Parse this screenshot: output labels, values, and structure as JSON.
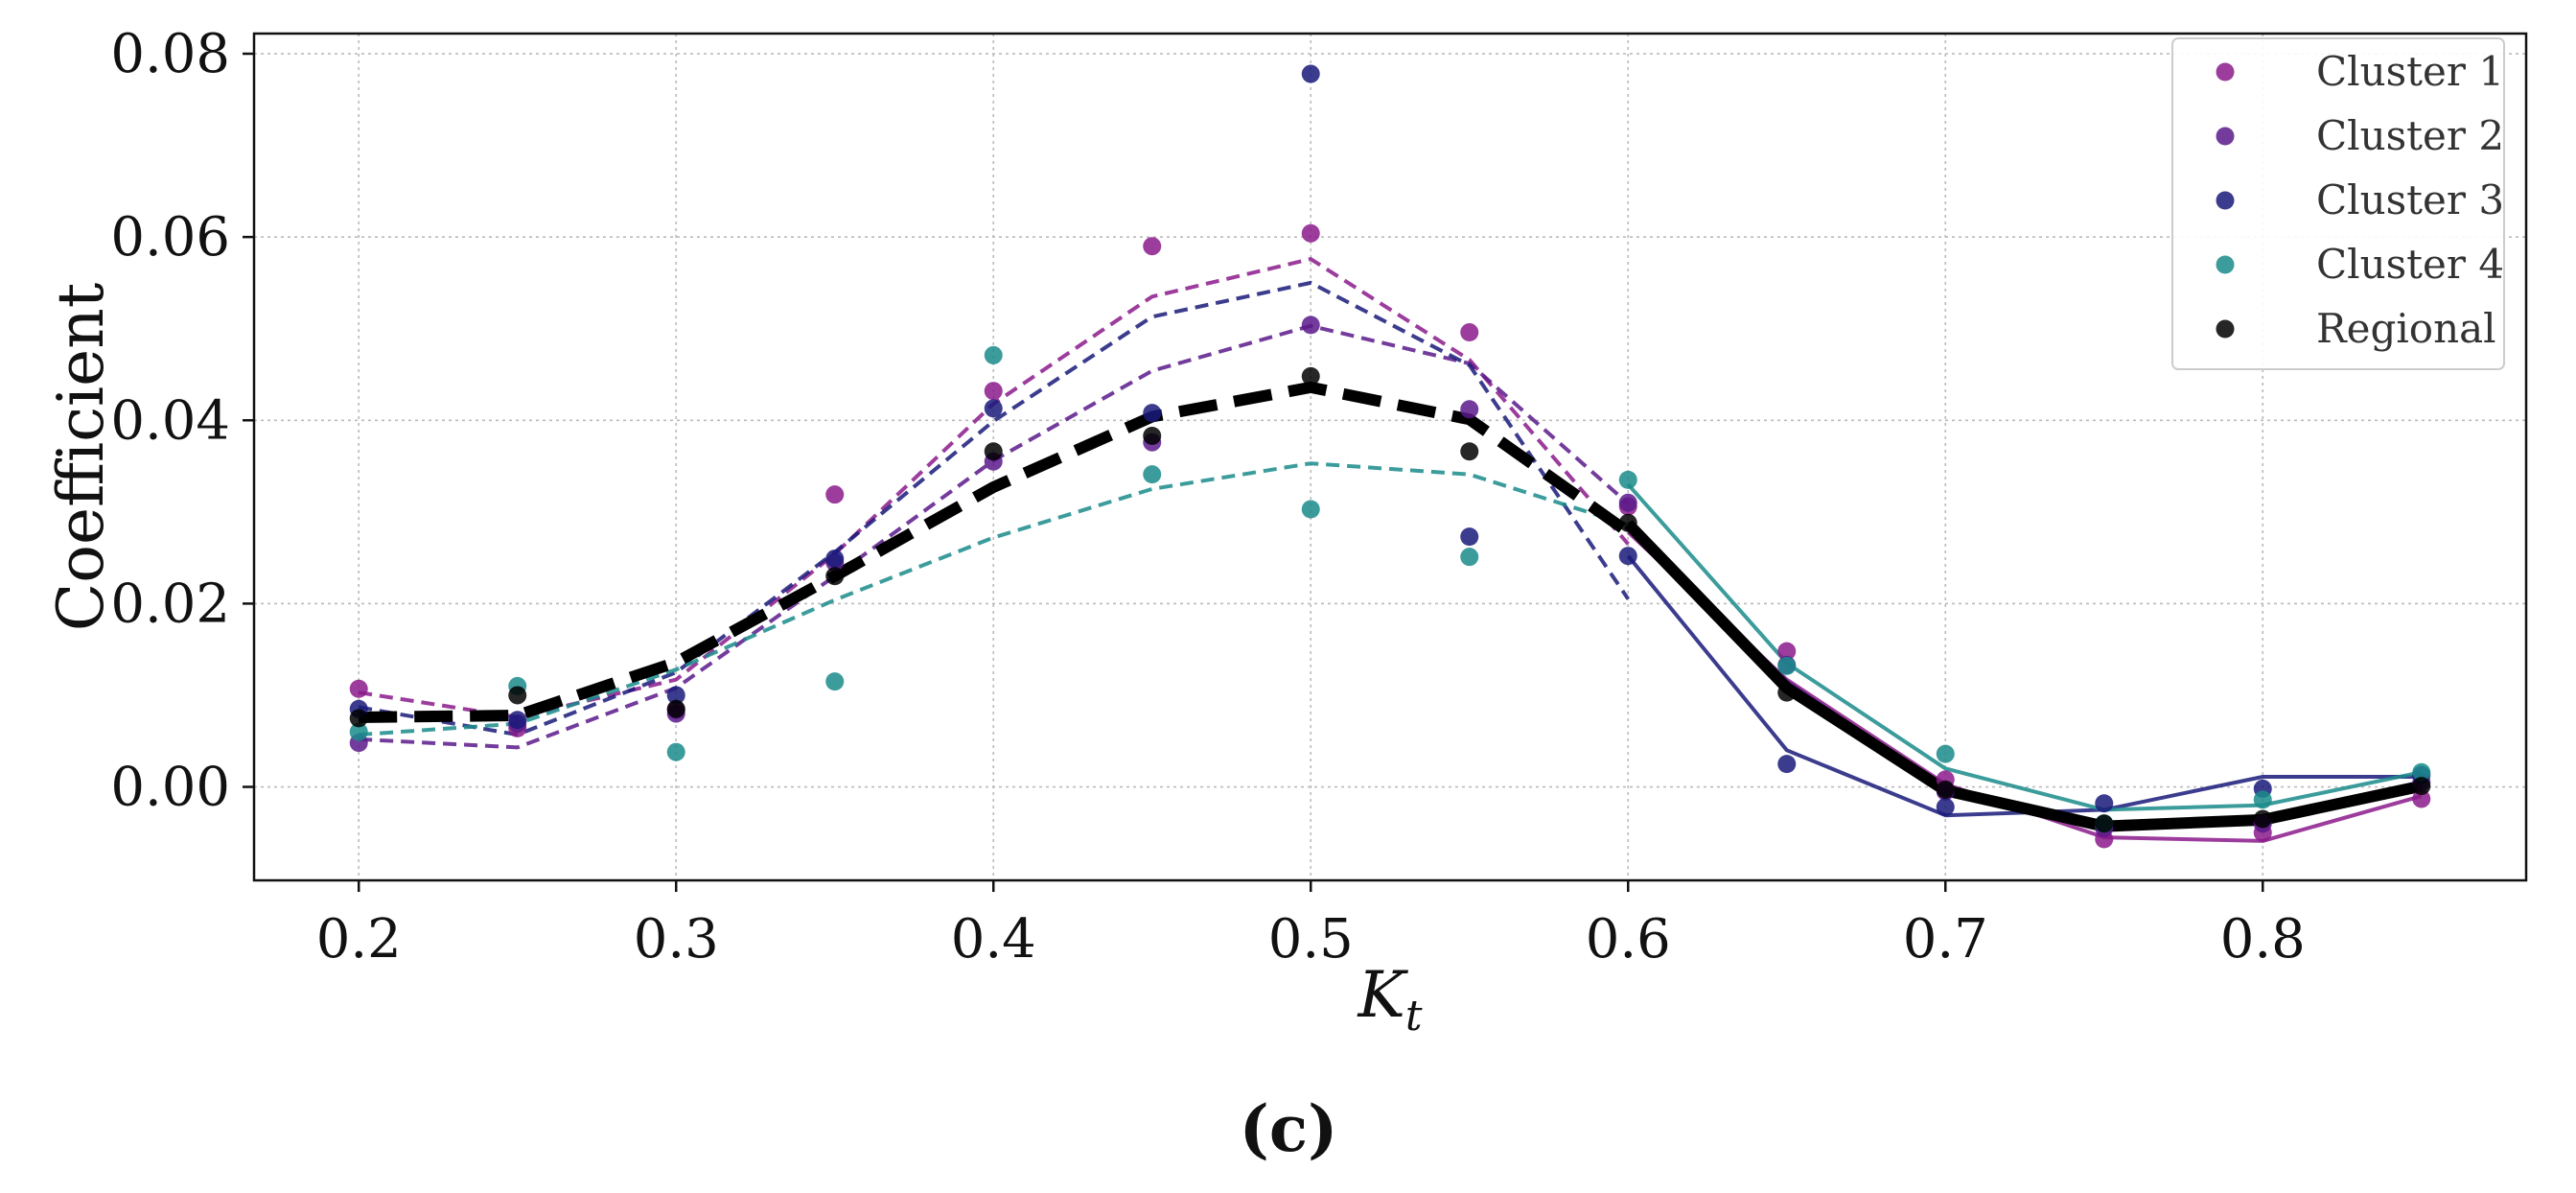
{
  "chart_data": {
    "type": "line",
    "title": "",
    "xlabel": "K",
    "xlabel_subscript": "t",
    "ylabel": "Coefficient",
    "caption": "(c)",
    "xlim": [
      0.167,
      0.883
    ],
    "ylim": [
      -0.0102,
      0.0822
    ],
    "x_ticks": [
      0.2,
      0.3,
      0.4,
      0.5,
      0.6,
      0.7,
      0.8
    ],
    "x_tick_labels": [
      "0.2",
      "0.3",
      "0.4",
      "0.5",
      "0.6",
      "0.7",
      "0.8"
    ],
    "y_ticks": [
      0.0,
      0.02,
      0.04,
      0.06,
      0.08
    ],
    "y_tick_labels": [
      "0.00",
      "0.02",
      "0.04",
      "0.06",
      "0.08"
    ],
    "grid": true,
    "legend_position": "top-right",
    "legend": [
      "Cluster 1",
      "Cluster 2",
      "Cluster 3",
      "Cluster 4",
      "Regional"
    ],
    "series": [
      {
        "name": "Cluster 1",
        "color": "#8b1a8b",
        "points_x": [
          0.2,
          0.25,
          0.3,
          0.35,
          0.4,
          0.45,
          0.5,
          0.55,
          0.6,
          0.65,
          0.7,
          0.75,
          0.8,
          0.85
        ],
        "points_y": [
          0.0107,
          0.0064,
          0.0084,
          0.0319,
          0.0432,
          0.059,
          0.0604,
          0.0496,
          0.0306,
          0.0148,
          0.0008,
          -0.0057,
          -0.005,
          -0.0013
        ],
        "dashed_fit_x": [
          0.2,
          0.25,
          0.3,
          0.35,
          0.4,
          0.45,
          0.5,
          0.55,
          0.6
        ],
        "dashed_fit_y": [
          0.0103,
          0.0076,
          0.0117,
          0.0254,
          0.0418,
          0.0535,
          0.0576,
          0.0466,
          0.0265
        ],
        "solid_fit_x": [
          0.6,
          0.65,
          0.7,
          0.75,
          0.8,
          0.85
        ],
        "solid_fit_y": [
          0.0278,
          0.0117,
          0.0003,
          -0.0055,
          -0.0059,
          -0.001
        ]
      },
      {
        "name": "Cluster 2",
        "color": "#5b1a8b",
        "points_x": [
          0.2,
          0.25,
          0.3,
          0.35,
          0.4,
          0.45,
          0.5,
          0.55,
          0.6,
          0.65,
          0.7,
          0.75,
          0.8,
          0.85
        ],
        "points_y": [
          0.0048,
          0.0069,
          0.008,
          0.0245,
          0.0355,
          0.0376,
          0.0504,
          0.0412,
          0.031,
          0.0133,
          -0.0005,
          -0.0045,
          -0.004,
          0.0005
        ],
        "dashed_fit_x": [
          0.2,
          0.25,
          0.3,
          0.35,
          0.4,
          0.45,
          0.5,
          0.55,
          0.6
        ],
        "dashed_fit_y": [
          0.0052,
          0.0043,
          0.0108,
          0.023,
          0.0356,
          0.0454,
          0.0503,
          0.0462,
          0.0309
        ],
        "solid_fit_x": [
          0.6,
          0.65,
          0.7,
          0.75,
          0.8,
          0.85
        ],
        "solid_fit_y": [
          0.0289,
          0.0115,
          -0.0002,
          -0.0043,
          -0.004,
          0.0003
        ]
      },
      {
        "name": "Cluster 3",
        "color": "#1a1a7a",
        "points_x": [
          0.2,
          0.25,
          0.3,
          0.35,
          0.4,
          0.45,
          0.5,
          0.55,
          0.6,
          0.65,
          0.7,
          0.75,
          0.8,
          0.85
        ],
        "points_y": [
          0.0085,
          0.0073,
          0.01,
          0.0249,
          0.0413,
          0.0408,
          0.0778,
          0.0273,
          0.0252,
          0.0025,
          -0.0022,
          -0.0018,
          -0.0002,
          0.0013
        ],
        "dashed_fit_x": [
          0.2,
          0.25,
          0.3,
          0.35,
          0.4,
          0.45,
          0.5,
          0.55,
          0.6
        ],
        "dashed_fit_y": [
          0.0087,
          0.0057,
          0.0125,
          0.0256,
          0.0399,
          0.0513,
          0.055,
          0.046,
          0.0205
        ],
        "solid_fit_x": [
          0.6,
          0.65,
          0.7,
          0.75,
          0.8,
          0.85
        ],
        "solid_fit_y": [
          0.0252,
          0.004,
          -0.0031,
          -0.0025,
          0.0011,
          0.0011
        ]
      },
      {
        "name": "Cluster 4",
        "color": "#1a8b8b",
        "points_x": [
          0.2,
          0.25,
          0.3,
          0.35,
          0.4,
          0.45,
          0.5,
          0.55,
          0.6,
          0.65,
          0.7,
          0.75,
          0.8,
          0.85
        ],
        "points_y": [
          0.006,
          0.011,
          0.0038,
          0.0115,
          0.0471,
          0.0341,
          0.0303,
          0.0251,
          0.0335,
          0.0132,
          0.0036,
          -0.004,
          -0.0014,
          0.0016
        ],
        "dashed_fit_x": [
          0.2,
          0.25,
          0.3,
          0.35,
          0.4,
          0.45,
          0.5,
          0.55,
          0.6
        ],
        "dashed_fit_y": [
          0.0057,
          0.0069,
          0.0128,
          0.0204,
          0.0272,
          0.0325,
          0.0353,
          0.0341,
          0.0286
        ],
        "solid_fit_x": [
          0.6,
          0.65,
          0.7,
          0.75,
          0.8,
          0.85
        ],
        "solid_fit_y": [
          0.033,
          0.0135,
          0.002,
          -0.0025,
          -0.002,
          0.0016
        ]
      },
      {
        "name": "Regional",
        "color": "#000000",
        "points_x": [
          0.2,
          0.25,
          0.3,
          0.35,
          0.4,
          0.45,
          0.5,
          0.55,
          0.6,
          0.65,
          0.7,
          0.75,
          0.8,
          0.85
        ],
        "points_y": [
          0.0075,
          0.01,
          0.0085,
          0.023,
          0.0366,
          0.0383,
          0.0448,
          0.0366,
          0.0288,
          0.0103,
          -0.0003,
          -0.004,
          -0.0035,
          0.0001
        ],
        "dashed_fit_x": [
          0.2,
          0.25,
          0.3,
          0.35,
          0.4,
          0.45,
          0.5,
          0.55,
          0.6
        ],
        "dashed_fit_y": [
          0.0076,
          0.0078,
          0.0136,
          0.023,
          0.0327,
          0.0404,
          0.0436,
          0.0401,
          0.0278
        ],
        "solid_fit_x": [
          0.6,
          0.65,
          0.7,
          0.75,
          0.8,
          0.85
        ],
        "solid_fit_y": [
          0.0287,
          0.0108,
          -0.0004,
          -0.0043,
          -0.0036,
          0.0001
        ]
      }
    ]
  }
}
